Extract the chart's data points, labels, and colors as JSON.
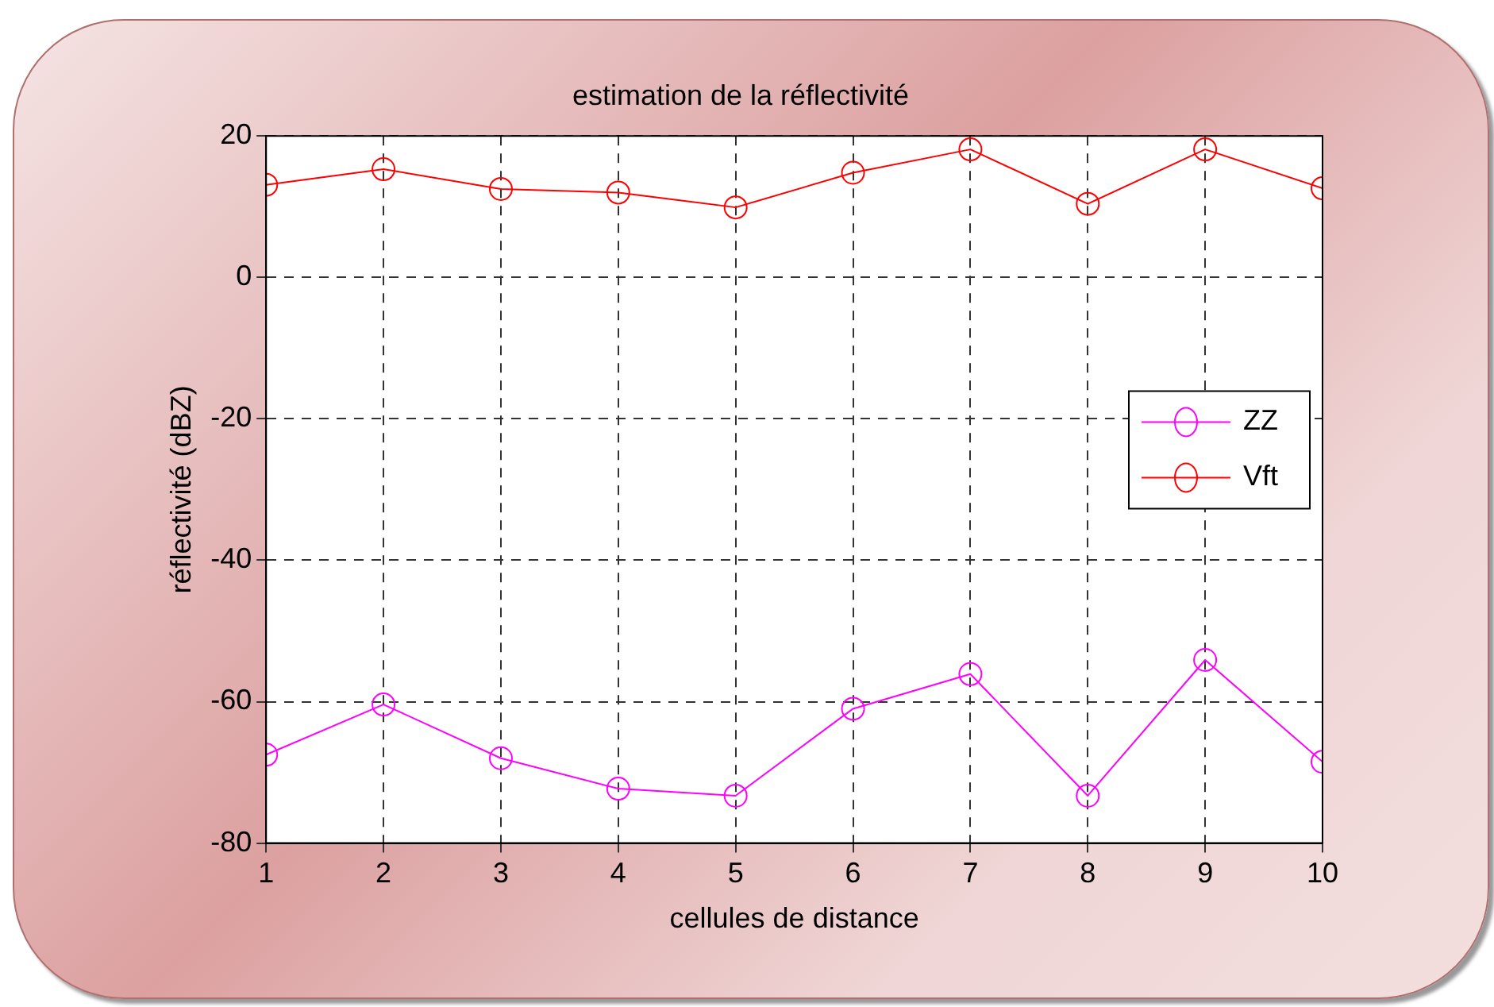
{
  "chart_data": {
    "type": "line",
    "title": "estimation de la réflectivité",
    "xlabel": "cellules de distance",
    "ylabel": "réflectivité (dBZ)",
    "x": [
      1,
      2,
      3,
      4,
      5,
      6,
      7,
      8,
      9,
      10
    ],
    "series": [
      {
        "name": "ZZ",
        "color": "#ff00ff",
        "values": [
          -67.5,
          -60.4,
          -68,
          -72.3,
          -73.3,
          -61,
          -56.1,
          -73.3,
          -54.1,
          -68.5
        ]
      },
      {
        "name": "Vft",
        "color": "#ff0000",
        "values": [
          13.1,
          15.3,
          12.5,
          12,
          9.9,
          14.8,
          18.1,
          10.4,
          18.1,
          12.6
        ]
      }
    ],
    "xlim": [
      1,
      10
    ],
    "xticks": [
      1,
      2,
      3,
      4,
      5,
      6,
      7,
      8,
      9,
      10
    ],
    "ylim": [
      -80,
      20
    ],
    "yticks": [
      -80,
      -60,
      -40,
      -20,
      0,
      20
    ],
    "grid": true,
    "legend": "right",
    "marker": "circle",
    "line_style": "solid"
  }
}
